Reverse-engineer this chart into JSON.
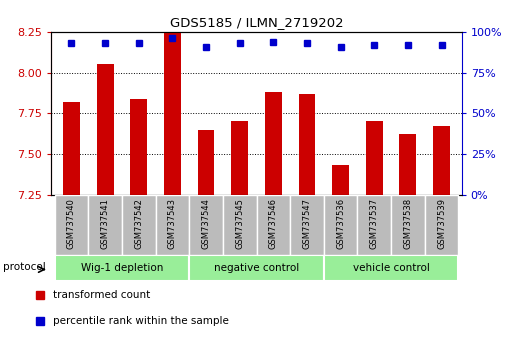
{
  "title": "GDS5185 / ILMN_2719202",
  "samples": [
    "GSM737540",
    "GSM737541",
    "GSM737542",
    "GSM737543",
    "GSM737544",
    "GSM737545",
    "GSM737546",
    "GSM737547",
    "GSM737536",
    "GSM737537",
    "GSM737538",
    "GSM737539"
  ],
  "bar_values": [
    7.82,
    8.05,
    7.84,
    8.24,
    7.65,
    7.7,
    7.88,
    7.87,
    7.43,
    7.7,
    7.62,
    7.67
  ],
  "percentile_values": [
    93,
    93,
    93,
    96,
    91,
    93,
    94,
    93,
    91,
    92,
    92,
    92
  ],
  "bar_color": "#cc0000",
  "dot_color": "#0000cc",
  "ylim_left": [
    7.25,
    8.25
  ],
  "ylim_right": [
    0,
    100
  ],
  "yticks_left": [
    7.25,
    7.5,
    7.75,
    8.0,
    8.25
  ],
  "yticks_right": [
    0,
    25,
    50,
    75,
    100
  ],
  "groups": [
    {
      "label": "Wig-1 depletion",
      "start": 0,
      "end": 3
    },
    {
      "label": "negative control",
      "start": 4,
      "end": 7
    },
    {
      "label": "vehicle control",
      "start": 8,
      "end": 11
    }
  ],
  "group_bg_color": "#99ee99",
  "sample_label_bg": "#bbbbbb",
  "protocol_label": "protocol",
  "legend_red_label": "transformed count",
  "legend_blue_label": "percentile rank within the sample",
  "bar_width": 0.5
}
